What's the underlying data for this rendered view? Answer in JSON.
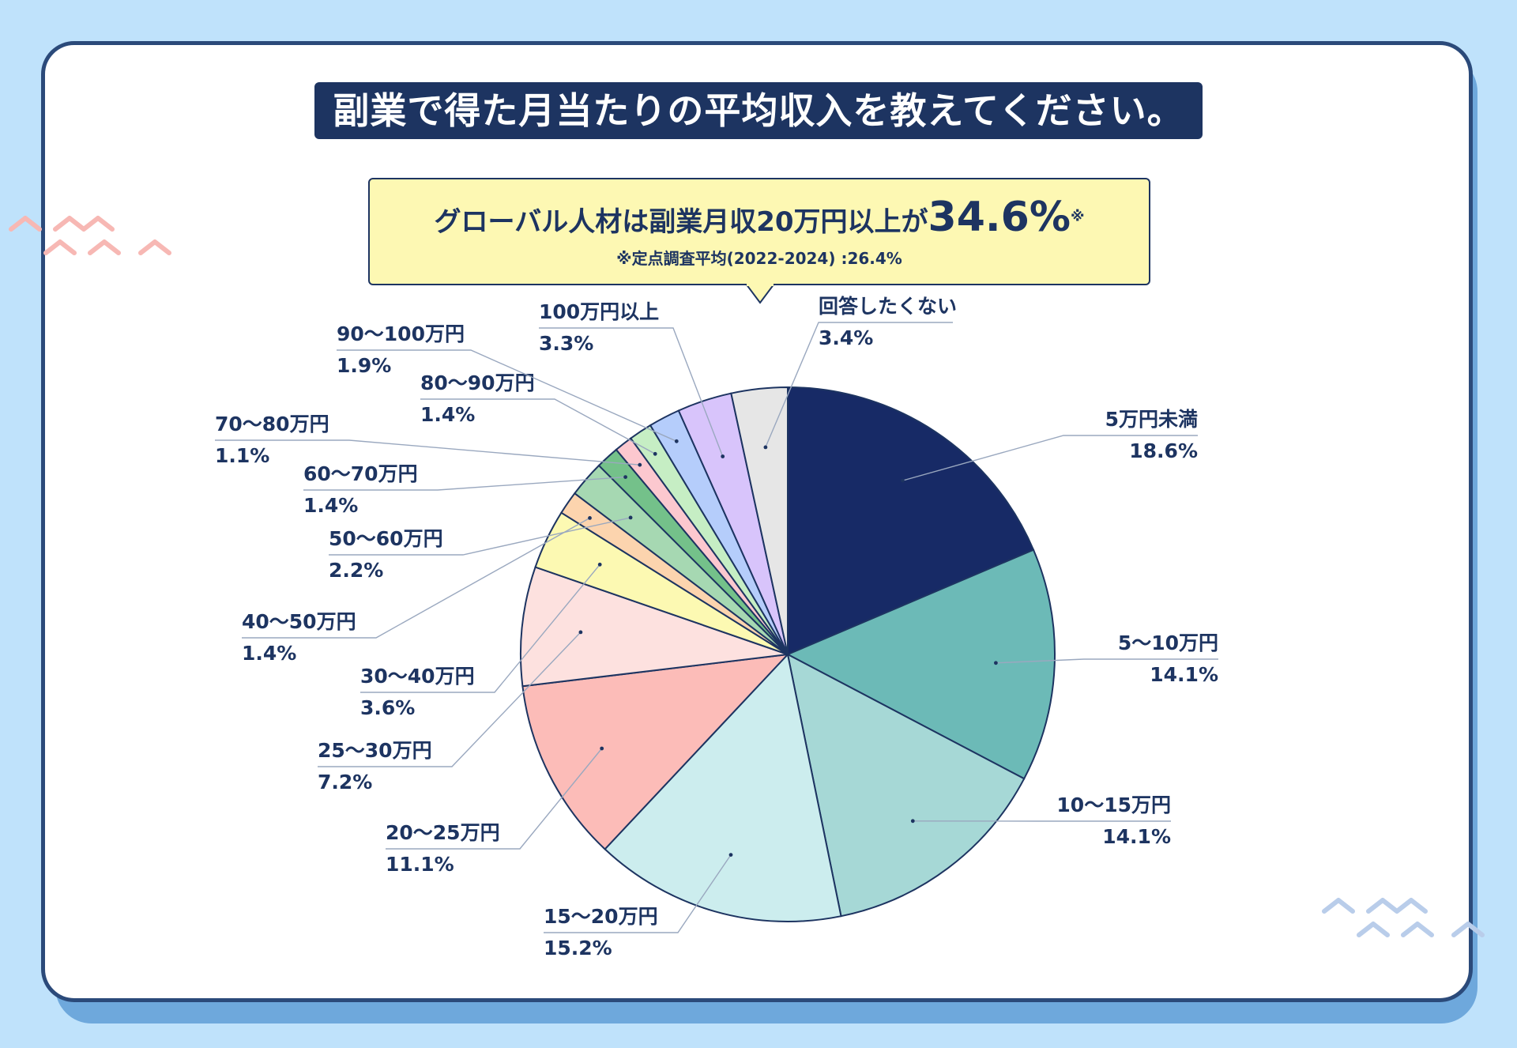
{
  "title": "副業で得た月当たりの平均収入を教えてください。",
  "callout": {
    "main": "グローバル人材は副業月収20万円以上が",
    "highlight": "34.6%",
    "mark": "※",
    "note": "※定点調査平均(2022-2024) :26.4%"
  },
  "colors": {
    "background": "#bfe2fb",
    "card_border": "#2b4a7a",
    "title_bg": "#1d3461",
    "callout_bg": "#fdf8b3",
    "label_text": "#1d3461"
  },
  "chart_data": {
    "type": "pie",
    "start": "12 o'clock",
    "direction": "clockwise",
    "slices": [
      {
        "label": "5万円未満",
        "value_label": "18.6%",
        "value": 18.6,
        "color": "#172a66"
      },
      {
        "label": "5〜10万円",
        "value_label": "14.1%",
        "value": 14.1,
        "color": "#6cbab7"
      },
      {
        "label": "10〜15万円",
        "value_label": "14.1%",
        "value": 14.1,
        "color": "#a6d8d6"
      },
      {
        "label": "15〜20万円",
        "value_label": "15.2%",
        "value": 15.2,
        "color": "#ccedee"
      },
      {
        "label": "20〜25万円",
        "value_label": "11.1%",
        "value": 11.1,
        "color": "#fcbcb8"
      },
      {
        "label": "25〜30万円",
        "value_label": "7.2%",
        "value": 7.2,
        "color": "#fde1df"
      },
      {
        "label": "30〜40万円",
        "value_label": "3.6%",
        "value": 3.6,
        "color": "#fcf9b2"
      },
      {
        "label": "40〜50万円",
        "value_label": "1.4%",
        "value": 1.4,
        "color": "#fcd4ae"
      },
      {
        "label": "50〜60万円",
        "value_label": "2.2%",
        "value": 2.2,
        "color": "#a6d8b2"
      },
      {
        "label": "60〜70万円",
        "value_label": "1.4%",
        "value": 1.4,
        "color": "#74c18a"
      },
      {
        "label": "70〜80万円",
        "value_label": "1.1%",
        "value": 1.1,
        "color": "#fcc8cf"
      },
      {
        "label": "80〜90万円",
        "value_label": "1.4%",
        "value": 1.4,
        "color": "#c6eec4"
      },
      {
        "label": "90〜100万円",
        "value_label": "1.9%",
        "value": 1.9,
        "color": "#b5cdfb"
      },
      {
        "label": "100万円以上",
        "value_label": "3.3%",
        "value": 3.3,
        "color": "#d8c4fb"
      },
      {
        "label": "回答したくない",
        "value_label": "3.4%",
        "value": 3.4,
        "color": "#e6e6e6"
      }
    ]
  }
}
